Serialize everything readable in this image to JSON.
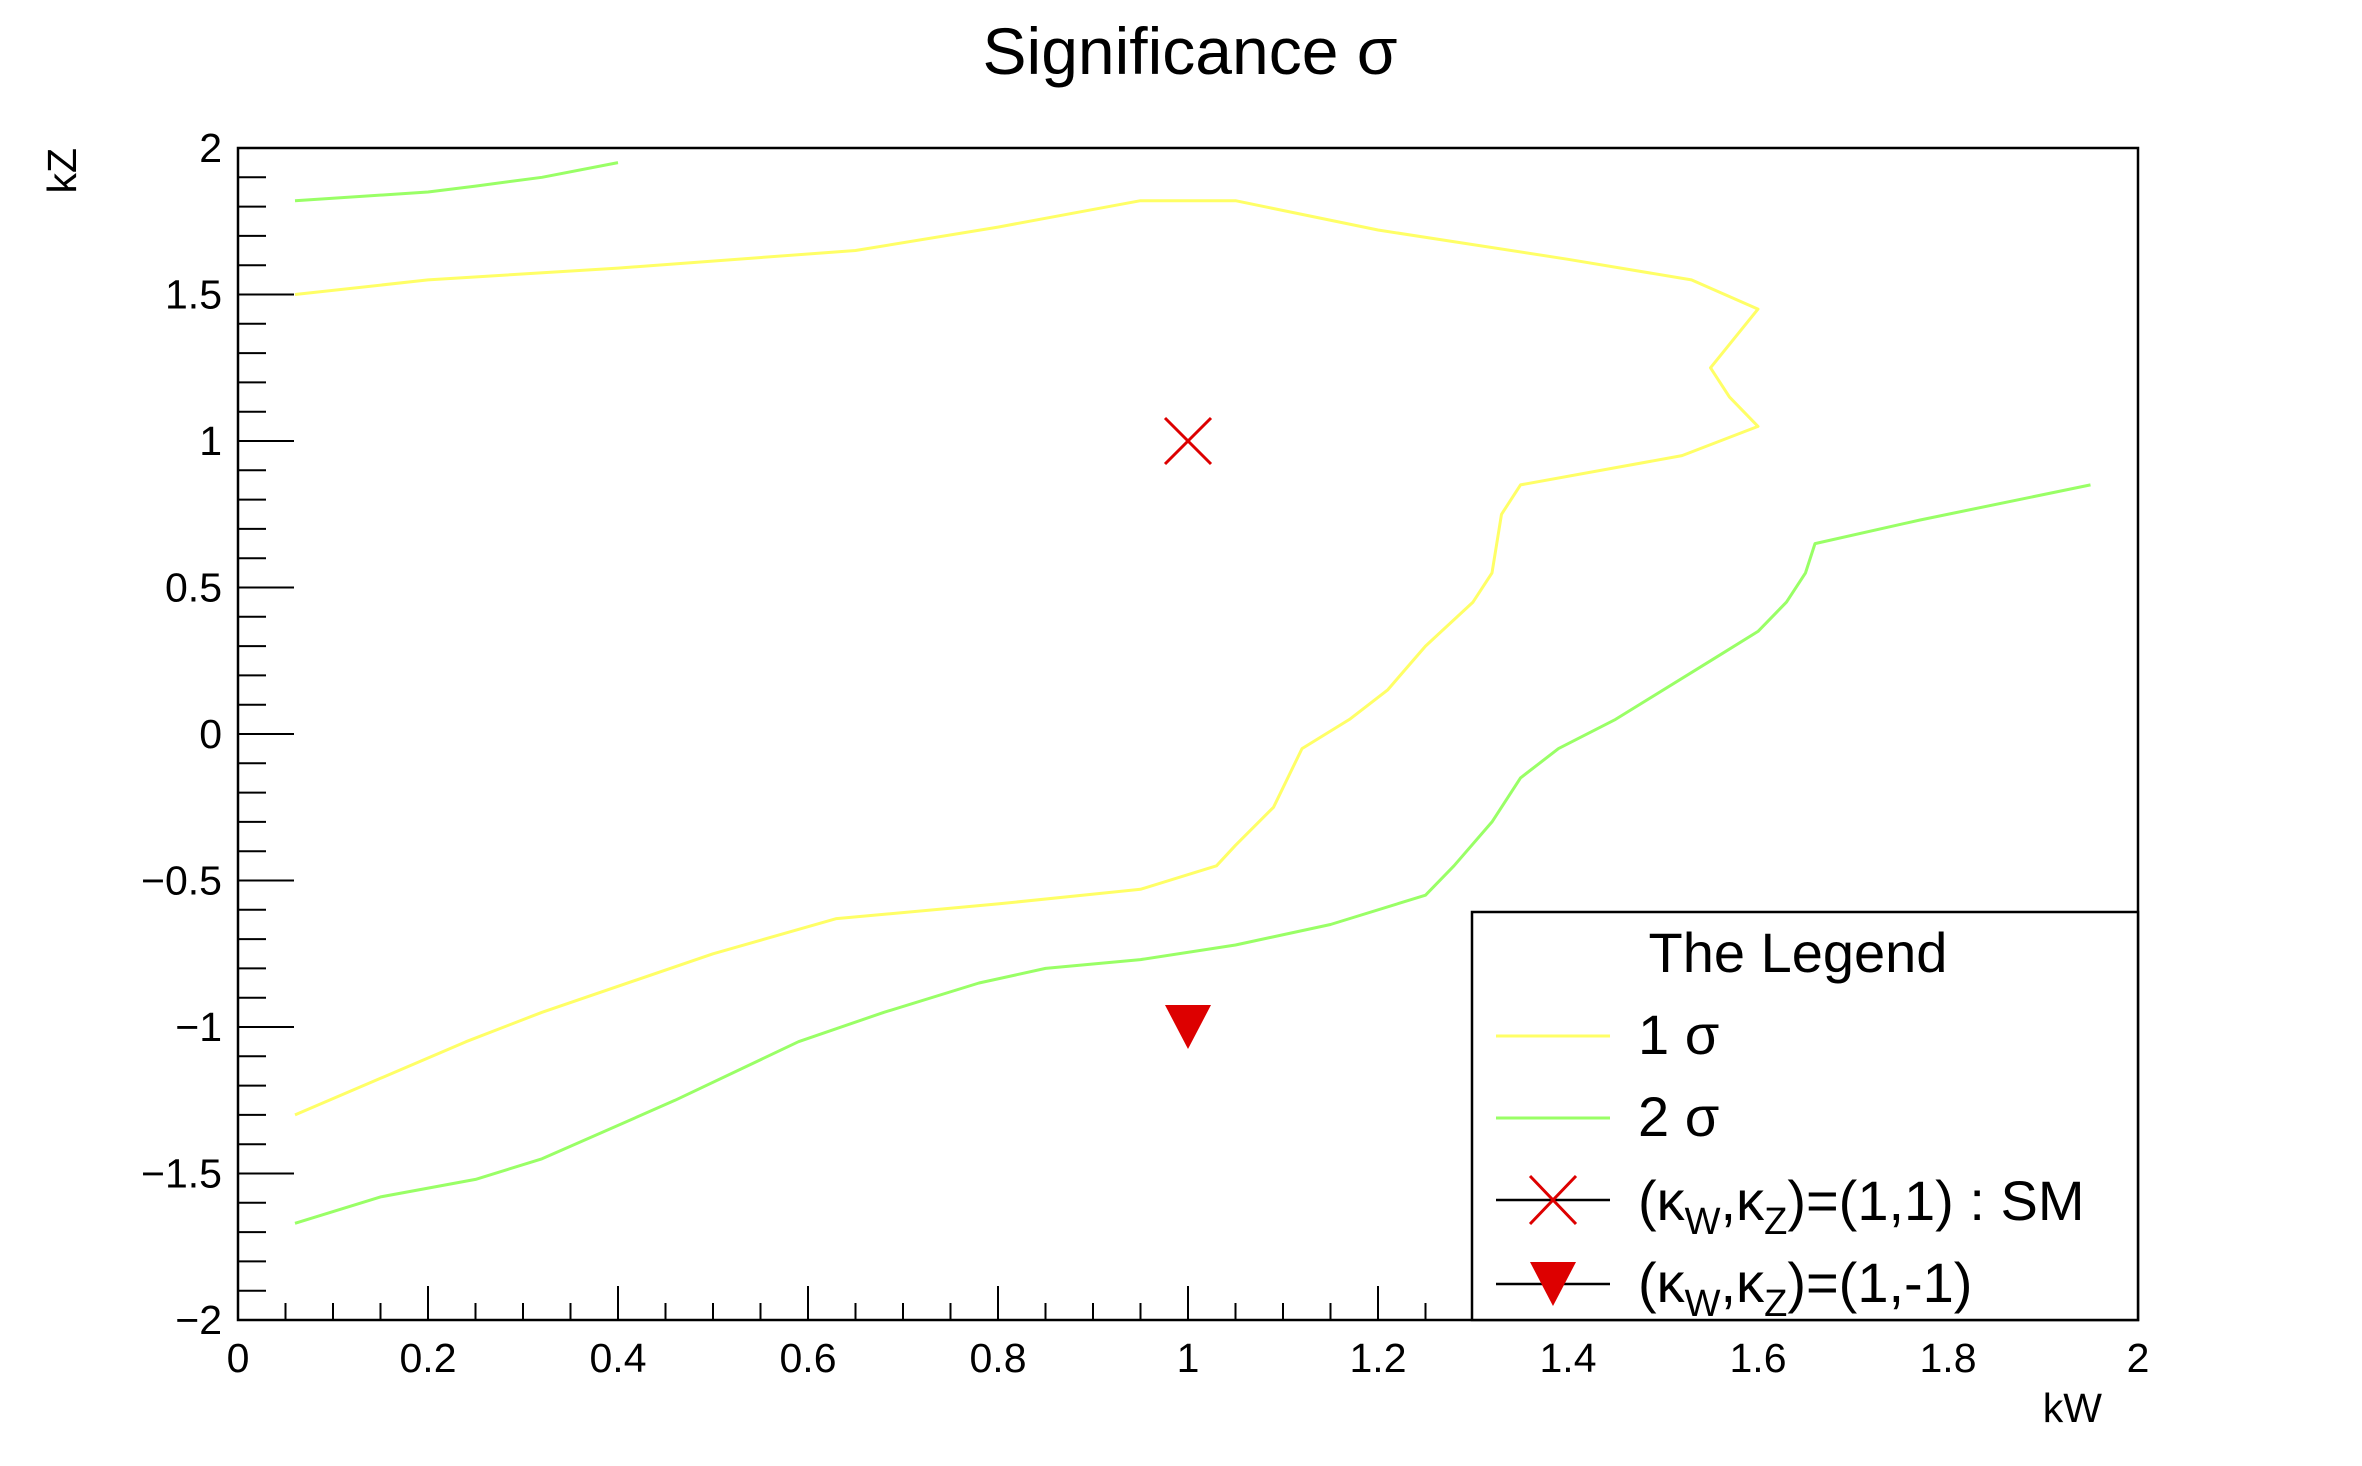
{
  "chart_data": {
    "type": "line",
    "title": "Significance σ",
    "xlabel": "kW",
    "ylabel": "kZ",
    "xlim": [
      0,
      2
    ],
    "ylim": [
      -2,
      2
    ],
    "x_ticks": [
      "0",
      "0.2",
      "0.4",
      "0.6",
      "0.8",
      "1",
      "1.2",
      "1.4",
      "1.6",
      "1.8",
      "2"
    ],
    "y_ticks": [
      "−2",
      "−1.5",
      "−1",
      "−0.5",
      "0",
      "0.5",
      "1",
      "1.5",
      "2"
    ],
    "grid": false,
    "legend": {
      "title": "The Legend",
      "placement": "bottom-right",
      "entries": [
        {
          "kind": "line",
          "color": "#ffff66",
          "text": "1 σ"
        },
        {
          "kind": "line",
          "color": "#99ff66",
          "text": "2 σ"
        },
        {
          "kind": "x-marker",
          "color": "#dd0000",
          "pre": "(κ",
          "sub1": "W",
          "mid": ",κ",
          "sub2": "Z",
          "post": ")=(1,1) : SM"
        },
        {
          "kind": "triangle-marker",
          "color": "#dd0000",
          "pre": "(κ",
          "sub1": "W",
          "mid": ",κ",
          "sub2": "Z",
          "post": ")=(1,-1)"
        }
      ]
    },
    "series": [
      {
        "color": "#ffff66",
        "segments": [
          [
            [
              0.06,
              1.5
            ],
            [
              0.2,
              1.55
            ],
            [
              0.4,
              1.59
            ],
            [
              0.65,
              1.65
            ],
            [
              0.8,
              1.73
            ],
            [
              0.95,
              1.82
            ],
            [
              1.05,
              1.82
            ],
            [
              1.2,
              1.72
            ],
            [
              1.4,
              1.62
            ],
            [
              1.53,
              1.55
            ],
            [
              1.6,
              1.45
            ],
            [
              1.55,
              1.25
            ],
            [
              1.57,
              1.15
            ],
            [
              1.6,
              1.05
            ],
            [
              1.52,
              0.95
            ],
            [
              1.35,
              0.85
            ],
            [
              1.33,
              0.75
            ],
            [
              1.32,
              0.55
            ],
            [
              1.3,
              0.45
            ],
            [
              1.25,
              0.3
            ],
            [
              1.21,
              0.15
            ],
            [
              1.17,
              0.05
            ],
            [
              1.12,
              -0.05
            ],
            [
              1.09,
              -0.25
            ],
            [
              1.05,
              -0.38
            ],
            [
              1.03,
              -0.45
            ],
            [
              0.95,
              -0.53
            ],
            [
              0.8,
              -0.58
            ],
            [
              0.63,
              -0.63
            ],
            [
              0.5,
              -0.75
            ],
            [
              0.32,
              -0.95
            ],
            [
              0.24,
              -1.05
            ],
            [
              0.06,
              -1.3
            ]
          ]
        ]
      },
      {
        "color": "#99ff66",
        "segments": [
          [
            [
              0.06,
              1.82
            ],
            [
              0.2,
              1.85
            ],
            [
              0.25,
              1.87
            ],
            [
              0.32,
              1.9
            ],
            [
              0.4,
              1.95
            ]
          ],
          [
            [
              1.95,
              0.85
            ],
            [
              1.77,
              0.73
            ],
            [
              1.66,
              0.65
            ],
            [
              1.65,
              0.55
            ],
            [
              1.63,
              0.45
            ],
            [
              1.6,
              0.35
            ],
            [
              1.55,
              0.25
            ],
            [
              1.45,
              0.05
            ],
            [
              1.39,
              -0.05
            ],
            [
              1.35,
              -0.15
            ],
            [
              1.32,
              -0.3
            ],
            [
              1.28,
              -0.45
            ],
            [
              1.25,
              -0.55
            ],
            [
              1.15,
              -0.65
            ],
            [
              1.05,
              -0.72
            ],
            [
              0.95,
              -0.77
            ],
            [
              0.85,
              -0.8
            ],
            [
              0.78,
              -0.85
            ],
            [
              0.68,
              -0.95
            ],
            [
              0.59,
              -1.05
            ],
            [
              0.46,
              -1.25
            ],
            [
              0.32,
              -1.45
            ],
            [
              0.25,
              -1.52
            ],
            [
              0.15,
              -1.58
            ],
            [
              0.06,
              -1.67
            ]
          ]
        ]
      }
    ],
    "markers": [
      {
        "shape": "x",
        "x": 1,
        "y": 1,
        "color": "#dd0000"
      },
      {
        "shape": "triangle-down",
        "x": 1,
        "y": -1,
        "color": "#dd0000"
      }
    ]
  }
}
